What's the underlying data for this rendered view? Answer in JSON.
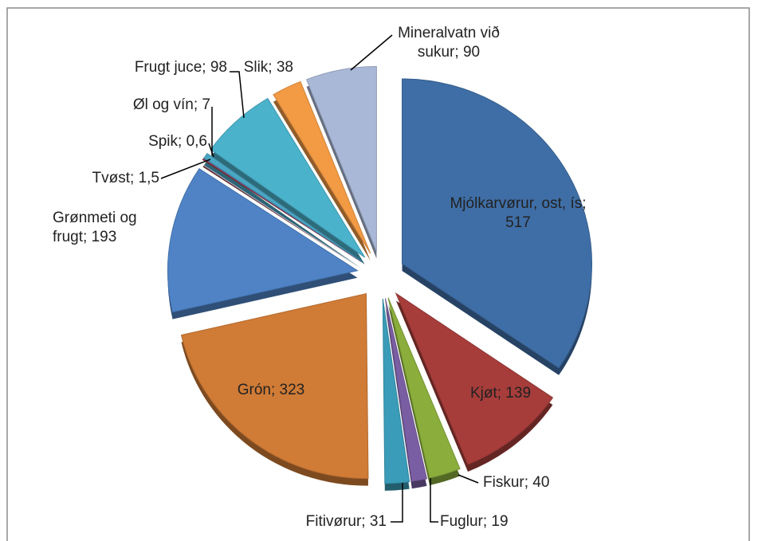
{
  "chart_data": {
    "type": "pie",
    "labels": [
      "Mjólkarvørur, ost, ís; 517",
      "Kjøt; 139",
      "Fiskur; 40",
      "Fuglur; 19",
      "Fitivørur; 31",
      "Grón; 323",
      "Grønmeti og frugt; 193",
      "Tvøst; 1,5",
      "Spik; 0,6",
      "Øl og vín; 7",
      "Frugt juce; 98",
      "Slik; 38",
      "Mineralvatn við sukur; 90"
    ],
    "values": [
      517,
      139,
      40,
      19,
      31,
      323,
      193,
      1.5,
      0.6,
      7,
      98,
      38,
      90
    ],
    "colors": [
      "#3f6ea6",
      "#a63d3a",
      "#8aad3c",
      "#7a5ea3",
      "#3a9cb8",
      "#d07b36",
      "#4f83c6",
      "#8d2f2c",
      "#7f64a8",
      "#4aa7c4",
      "#4bb2cb",
      "#f29a44",
      "#a9b8d6"
    ]
  }
}
